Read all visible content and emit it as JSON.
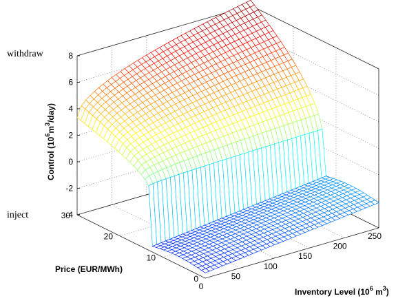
{
  "chart_data": {
    "type": "surface",
    "annotations": {
      "top": "withdraw",
      "bottom": "inject"
    },
    "xlabel": "Inventory Level (10^6 m^3)",
    "xlabel_parts": {
      "main": "Inventory Level (10",
      "sup": "6",
      "mid": " m",
      "sup2": "3",
      "end": ")"
    },
    "ylabel": "Price (EUR/MWh)",
    "zlabel": "Control (10^6 m^3/day)",
    "zlabel_parts": {
      "main": "Control (10",
      "sup": "6",
      "mid": "m",
      "sup2": "3",
      "end": "/day)"
    },
    "xlim": [
      0,
      250
    ],
    "ylim": [
      0,
      30
    ],
    "zlim": [
      -4,
      8
    ],
    "xticks": [
      "0",
      "50",
      "100",
      "150",
      "200",
      "250"
    ],
    "yticks": [
      "0",
      "10",
      "20",
      "30"
    ],
    "zticks": [
      "-4",
      "-2",
      "0",
      "2",
      "4",
      "6",
      "8"
    ],
    "grid": true,
    "colormap": "jet",
    "threshold_price": 13,
    "surface": {
      "withdraw_max_rate": 8.4,
      "withdraw_min_rate": 0.6,
      "inject_rate_at_empty": -3.6,
      "inject_rate_at_full": -2.1
    }
  }
}
